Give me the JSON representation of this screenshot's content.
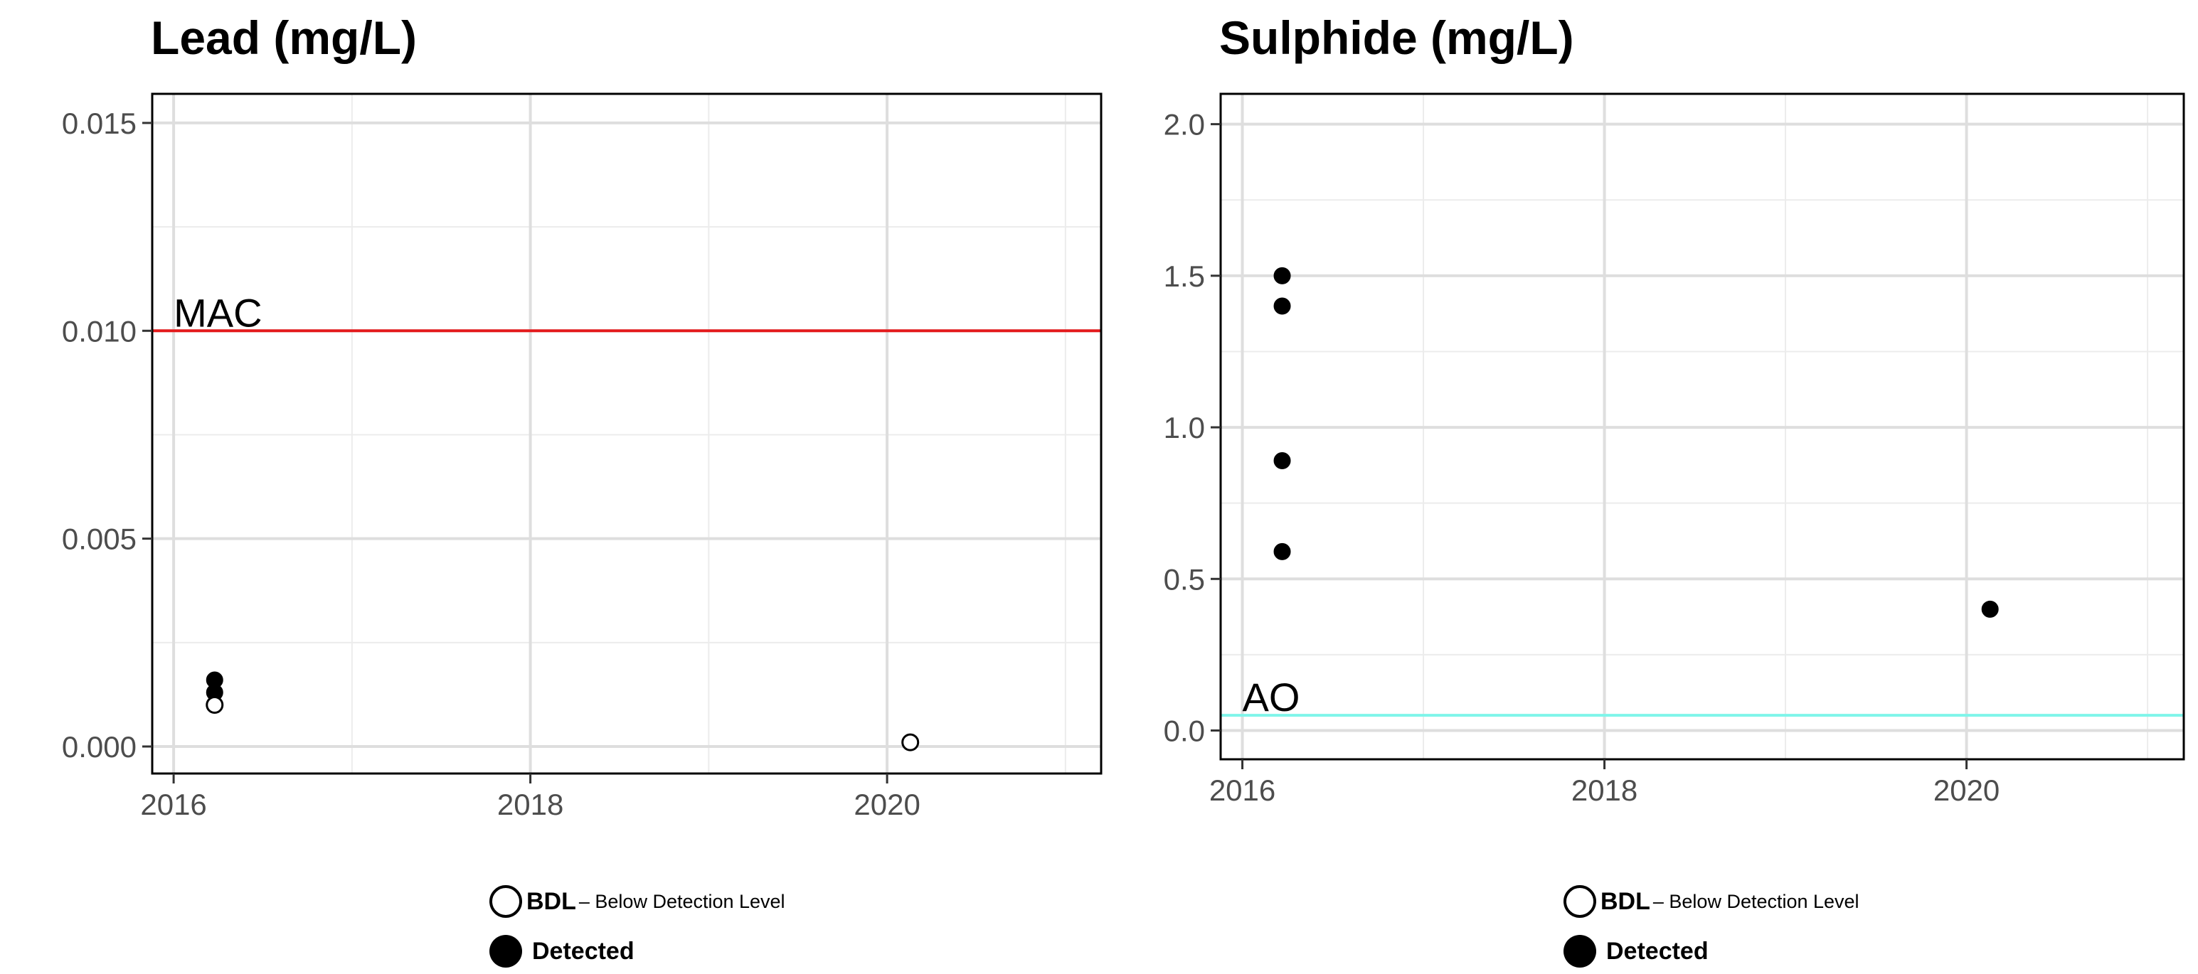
{
  "chart_data": [
    {
      "type": "scatter",
      "title": "Lead (mg/L)",
      "xlabel": "",
      "ylabel": "",
      "xlim": [
        2015.88,
        2021.2
      ],
      "ylim": [
        -0.00065,
        0.0157
      ],
      "x_ticks": [
        2016,
        2018,
        2020
      ],
      "x_tick_labels": [
        "2016",
        "2018",
        "2020"
      ],
      "y_ticks": [
        0.0,
        0.005,
        0.01,
        0.015
      ],
      "y_tick_labels": [
        "0.000",
        "0.005",
        "0.010",
        "0.015"
      ],
      "grid": true,
      "reference_line": {
        "label": "MAC",
        "value": 0.01,
        "color": "#e41a1c"
      },
      "series": [
        {
          "name": "Detected",
          "filled": true,
          "x": [
            2016.23,
            2016.23
          ],
          "y": [
            0.0016,
            0.0013
          ]
        },
        {
          "name": "BDL",
          "filled": false,
          "x": [
            2016.23,
            2020.13
          ],
          "y": [
            0.001,
            0.0001
          ]
        }
      ]
    },
    {
      "type": "scatter",
      "title": "Sulphide (mg/L)",
      "xlabel": "",
      "ylabel": "",
      "xlim": [
        2015.88,
        2021.2
      ],
      "ylim": [
        -0.095,
        2.1
      ],
      "x_ticks": [
        2016,
        2018,
        2020
      ],
      "x_tick_labels": [
        "2016",
        "2018",
        "2020"
      ],
      "y_ticks": [
        0.0,
        0.5,
        1.0,
        1.5,
        2.0
      ],
      "y_tick_labels": [
        "0.0",
        "0.5",
        "1.0",
        "1.5",
        "2.0"
      ],
      "grid": true,
      "reference_line": {
        "label": "AO",
        "value": 0.05,
        "color": "#7ff5ea"
      },
      "series": [
        {
          "name": "Detected",
          "filled": true,
          "x": [
            2016.22,
            2016.22,
            2016.22,
            2016.22,
            2020.13
          ],
          "y": [
            1.5,
            1.4,
            0.89,
            0.59,
            0.4
          ]
        }
      ]
    }
  ],
  "legends": [
    {
      "bdl_code": "BDL",
      "bdl_desc": "– Below Detection Level",
      "detected": "Detected"
    },
    {
      "bdl_code": "BDL",
      "bdl_desc": "– Below Detection Level",
      "detected": "Detected"
    }
  ]
}
